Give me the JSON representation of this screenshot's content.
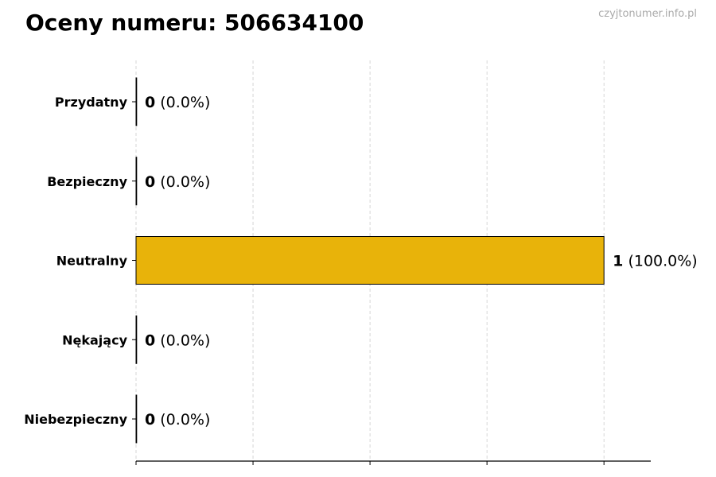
{
  "watermark": "czyjtonumer.info.pl",
  "chart_data": {
    "type": "bar",
    "orientation": "horizontal",
    "title": "Oceny numeru: 506634100",
    "categories": [
      "Przydatny",
      "Bezpieczny",
      "Neutralny",
      "Nękający",
      "Niebezpieczny"
    ],
    "values": [
      0,
      0,
      1,
      0,
      0
    ],
    "labels": [
      {
        "count": "0",
        "pct": "(0.0%)"
      },
      {
        "count": "0",
        "pct": "(0.0%)"
      },
      {
        "count": "1",
        "pct": "(100.0%)"
      },
      {
        "count": "0",
        "pct": "(0.0%)"
      },
      {
        "count": "0",
        "pct": "(0.0%)"
      }
    ],
    "xlim": [
      0,
      1.1
    ],
    "xticks": [
      0,
      0.25,
      0.5,
      0.75,
      1.0
    ],
    "xtick_labels_shown": false,
    "grid": "x dashed",
    "bar_color": "#E8B30A",
    "bar_edge_color": "#000000"
  }
}
